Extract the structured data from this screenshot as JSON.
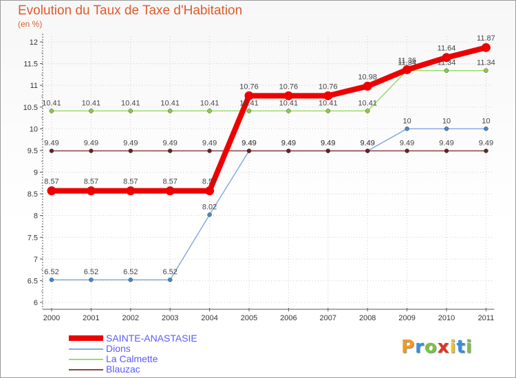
{
  "title": "Evolution du Taux de Taxe d'Habitation",
  "subtitle": "(en %)",
  "logo_text": "Proxiti",
  "colors": {
    "title": "#e05a2a",
    "legend_text": "#5a5aff",
    "axis": "#555555"
  },
  "chart_data": {
    "type": "line",
    "title": "Evolution du Taux de Taxe d'Habitation",
    "ylabel": "(en %)",
    "xlabel": "",
    "x": [
      "2000",
      "2001",
      "2002",
      "2003",
      "2004",
      "2005",
      "2006",
      "2007",
      "2008",
      "2009",
      "2010",
      "2011"
    ],
    "ylim": [
      6,
      12
    ],
    "yticks": [
      "6",
      "6.5",
      "7",
      "7.5",
      "8",
      "8.5",
      "9",
      "9.5",
      "10",
      "10.5",
      "11",
      "11.5",
      "12"
    ],
    "legend": "bottom-left",
    "series": [
      {
        "name": "La Calmette",
        "color": "#99dd66",
        "point_color": "#88cc44",
        "values": [
          10.41,
          10.41,
          10.41,
          10.41,
          10.41,
          10.41,
          10.41,
          10.41,
          10.41,
          11.34,
          11.34,
          11.34
        ],
        "labels": [
          "10.41",
          "10.41",
          "10.41",
          "10.41",
          "10.41",
          "10.41",
          "10.41",
          "10.41",
          "10.41",
          "11.34",
          "11.34",
          "11.34"
        ]
      },
      {
        "name": "Dions",
        "color": "#88aadd",
        "point_color": "#4488cc",
        "values": [
          6.52,
          6.52,
          6.52,
          6.52,
          8.02,
          9.49,
          9.49,
          9.49,
          9.49,
          10,
          10,
          10
        ],
        "labels": [
          "6.52",
          "6.52",
          "6.52",
          "6.52",
          "8.02",
          "9.49",
          "9.49",
          "9.49",
          "9.49",
          "10",
          "10",
          "10"
        ]
      },
      {
        "name": "Blauzac",
        "color": "#884444",
        "point_color": "#662222",
        "values": [
          9.49,
          9.49,
          9.49,
          9.49,
          9.49,
          9.49,
          9.49,
          9.49,
          9.49,
          9.49,
          9.49,
          9.49
        ],
        "labels": [
          "9.49",
          "9.49",
          "9.49",
          "9.49",
          "9.49",
          "9.49",
          "9.49",
          "9.49",
          "9.49",
          "9.49",
          "9.49",
          "9.49"
        ]
      },
      {
        "name": "SAINTE-ANASTASIE",
        "color": "#ee0000",
        "point_color": "#ee0000",
        "values": [
          8.57,
          8.57,
          8.57,
          8.57,
          8.57,
          10.76,
          10.76,
          10.76,
          10.98,
          11.36,
          11.64,
          11.87
        ],
        "labels": [
          "8.57",
          "8.57",
          "8.57",
          "8.57",
          "8.57",
          "10.76",
          "10.76",
          "10.76",
          "10.98",
          "11.36",
          "11.64",
          "11.87"
        ]
      }
    ],
    "legend_entries": [
      "SAINTE-ANASTASIE",
      "Dions",
      "La Calmette",
      "Blauzac"
    ]
  }
}
